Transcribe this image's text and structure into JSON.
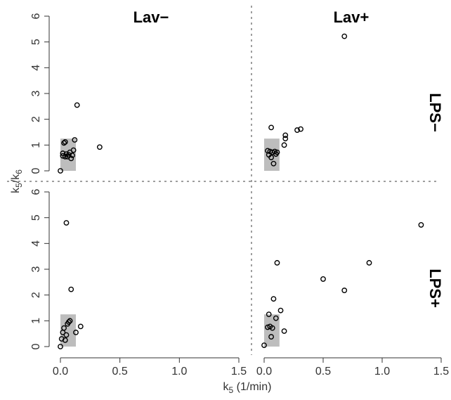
{
  "chart_data": {
    "type": "scatter",
    "xlabel": "k",
    "xlabel_sub": "5",
    "xlabel_unit": " (1/min)",
    "ylabel": "k",
    "ylabel_sub": "5",
    "ylabel_sep": "/k",
    "ylabel_sub2": "6",
    "xlim": [
      0,
      1.5
    ],
    "ylim": [
      0,
      6
    ],
    "xticks": [
      "0.0",
      "0.5",
      "1.0",
      "1.5"
    ],
    "yticks": [
      "0",
      "1",
      "2",
      "3",
      "4",
      "5",
      "6"
    ],
    "columns": [
      "Lav−",
      "Lav+"
    ],
    "rows": [
      "LPS−",
      "LPS+"
    ],
    "colors": {
      "box": "#bdbdbd",
      "points": "#000000",
      "divider": "#9e9e9e"
    },
    "panels": [
      {
        "col": "Lav−",
        "row": "LPS−",
        "box": {
          "x0": 0.0,
          "x1": 0.13,
          "y0": 0,
          "y1": 1.25
        },
        "points": [
          [
            0.0,
            0.0
          ],
          [
            0.02,
            0.68
          ],
          [
            0.03,
            1.08
          ],
          [
            0.04,
            1.12
          ],
          [
            0.02,
            0.58
          ],
          [
            0.04,
            0.55
          ],
          [
            0.05,
            0.65
          ],
          [
            0.06,
            0.55
          ],
          [
            0.07,
            0.62
          ],
          [
            0.08,
            0.72
          ],
          [
            0.09,
            0.48
          ],
          [
            0.1,
            0.6
          ],
          [
            0.11,
            0.8
          ],
          [
            0.12,
            1.2
          ],
          [
            0.14,
            2.55
          ],
          [
            0.33,
            0.92
          ]
        ]
      },
      {
        "col": "Lav+",
        "row": "LPS−",
        "box": {
          "x0": 0.0,
          "x1": 0.13,
          "y0": 0,
          "y1": 1.25
        },
        "points": [
          [
            0.03,
            0.78
          ],
          [
            0.04,
            0.62
          ],
          [
            0.05,
            0.75
          ],
          [
            0.06,
            0.52
          ],
          [
            0.06,
            1.68
          ],
          [
            0.07,
            0.72
          ],
          [
            0.08,
            0.28
          ],
          [
            0.09,
            0.75
          ],
          [
            0.1,
            0.65
          ],
          [
            0.11,
            0.72
          ],
          [
            0.17,
            1.0
          ],
          [
            0.18,
            1.25
          ],
          [
            0.18,
            1.38
          ],
          [
            0.28,
            1.58
          ],
          [
            0.31,
            1.62
          ],
          [
            0.68,
            5.22
          ]
        ]
      },
      {
        "col": "Lav−",
        "row": "LPS+",
        "box": {
          "x0": 0.0,
          "x1": 0.13,
          "y0": 0,
          "y1": 1.25
        },
        "points": [
          [
            0.0,
            0.0
          ],
          [
            0.01,
            0.3
          ],
          [
            0.02,
            0.55
          ],
          [
            0.03,
            0.72
          ],
          [
            0.04,
            0.25
          ],
          [
            0.05,
            0.45
          ],
          [
            0.06,
            0.88
          ],
          [
            0.07,
            0.95
          ],
          [
            0.08,
            1.0
          ],
          [
            0.05,
            4.8
          ],
          [
            0.09,
            2.22
          ],
          [
            0.13,
            0.55
          ],
          [
            0.17,
            0.78
          ]
        ]
      },
      {
        "col": "Lav+",
        "row": "LPS+",
        "box": {
          "x0": 0.0,
          "x1": 0.13,
          "y0": 0,
          "y1": 1.25
        },
        "points": [
          [
            0.0,
            0.05
          ],
          [
            0.03,
            0.75
          ],
          [
            0.04,
            1.25
          ],
          [
            0.05,
            0.78
          ],
          [
            0.06,
            0.38
          ],
          [
            0.07,
            0.72
          ],
          [
            0.08,
            1.85
          ],
          [
            0.1,
            1.1
          ],
          [
            0.11,
            3.25
          ],
          [
            0.14,
            1.4
          ],
          [
            0.17,
            0.6
          ],
          [
            0.5,
            2.62
          ],
          [
            0.68,
            2.18
          ],
          [
            0.89,
            3.25
          ],
          [
            1.33,
            4.72
          ]
        ]
      }
    ]
  }
}
